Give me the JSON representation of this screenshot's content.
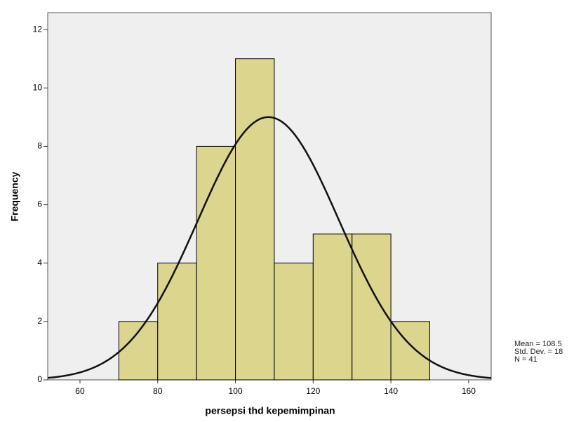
{
  "chart_data": {
    "type": "histogram",
    "xlabel": "persepsi thd kepemimpinan",
    "ylabel": "Frequency",
    "bins": [
      70,
      80,
      90,
      100,
      110,
      120,
      130,
      140,
      150
    ],
    "counts": [
      2,
      4,
      8,
      11,
      4,
      5,
      5,
      2
    ],
    "color": "#d4cc6e",
    "curve": {
      "mean": 108.5,
      "std_dev": 18.17,
      "n": 41,
      "color": "#111111"
    },
    "stats": [
      "Mean = 108.5",
      "Std. Dev. = 18",
      "N = 41"
    ],
    "xlim": [
      51.7,
      165.8
    ],
    "ylim": [
      0,
      12.58
    ],
    "xticks": [
      60,
      80,
      100,
      120,
      140,
      160
    ],
    "yticks": [
      0,
      2,
      4,
      6,
      8,
      10,
      12
    ]
  }
}
